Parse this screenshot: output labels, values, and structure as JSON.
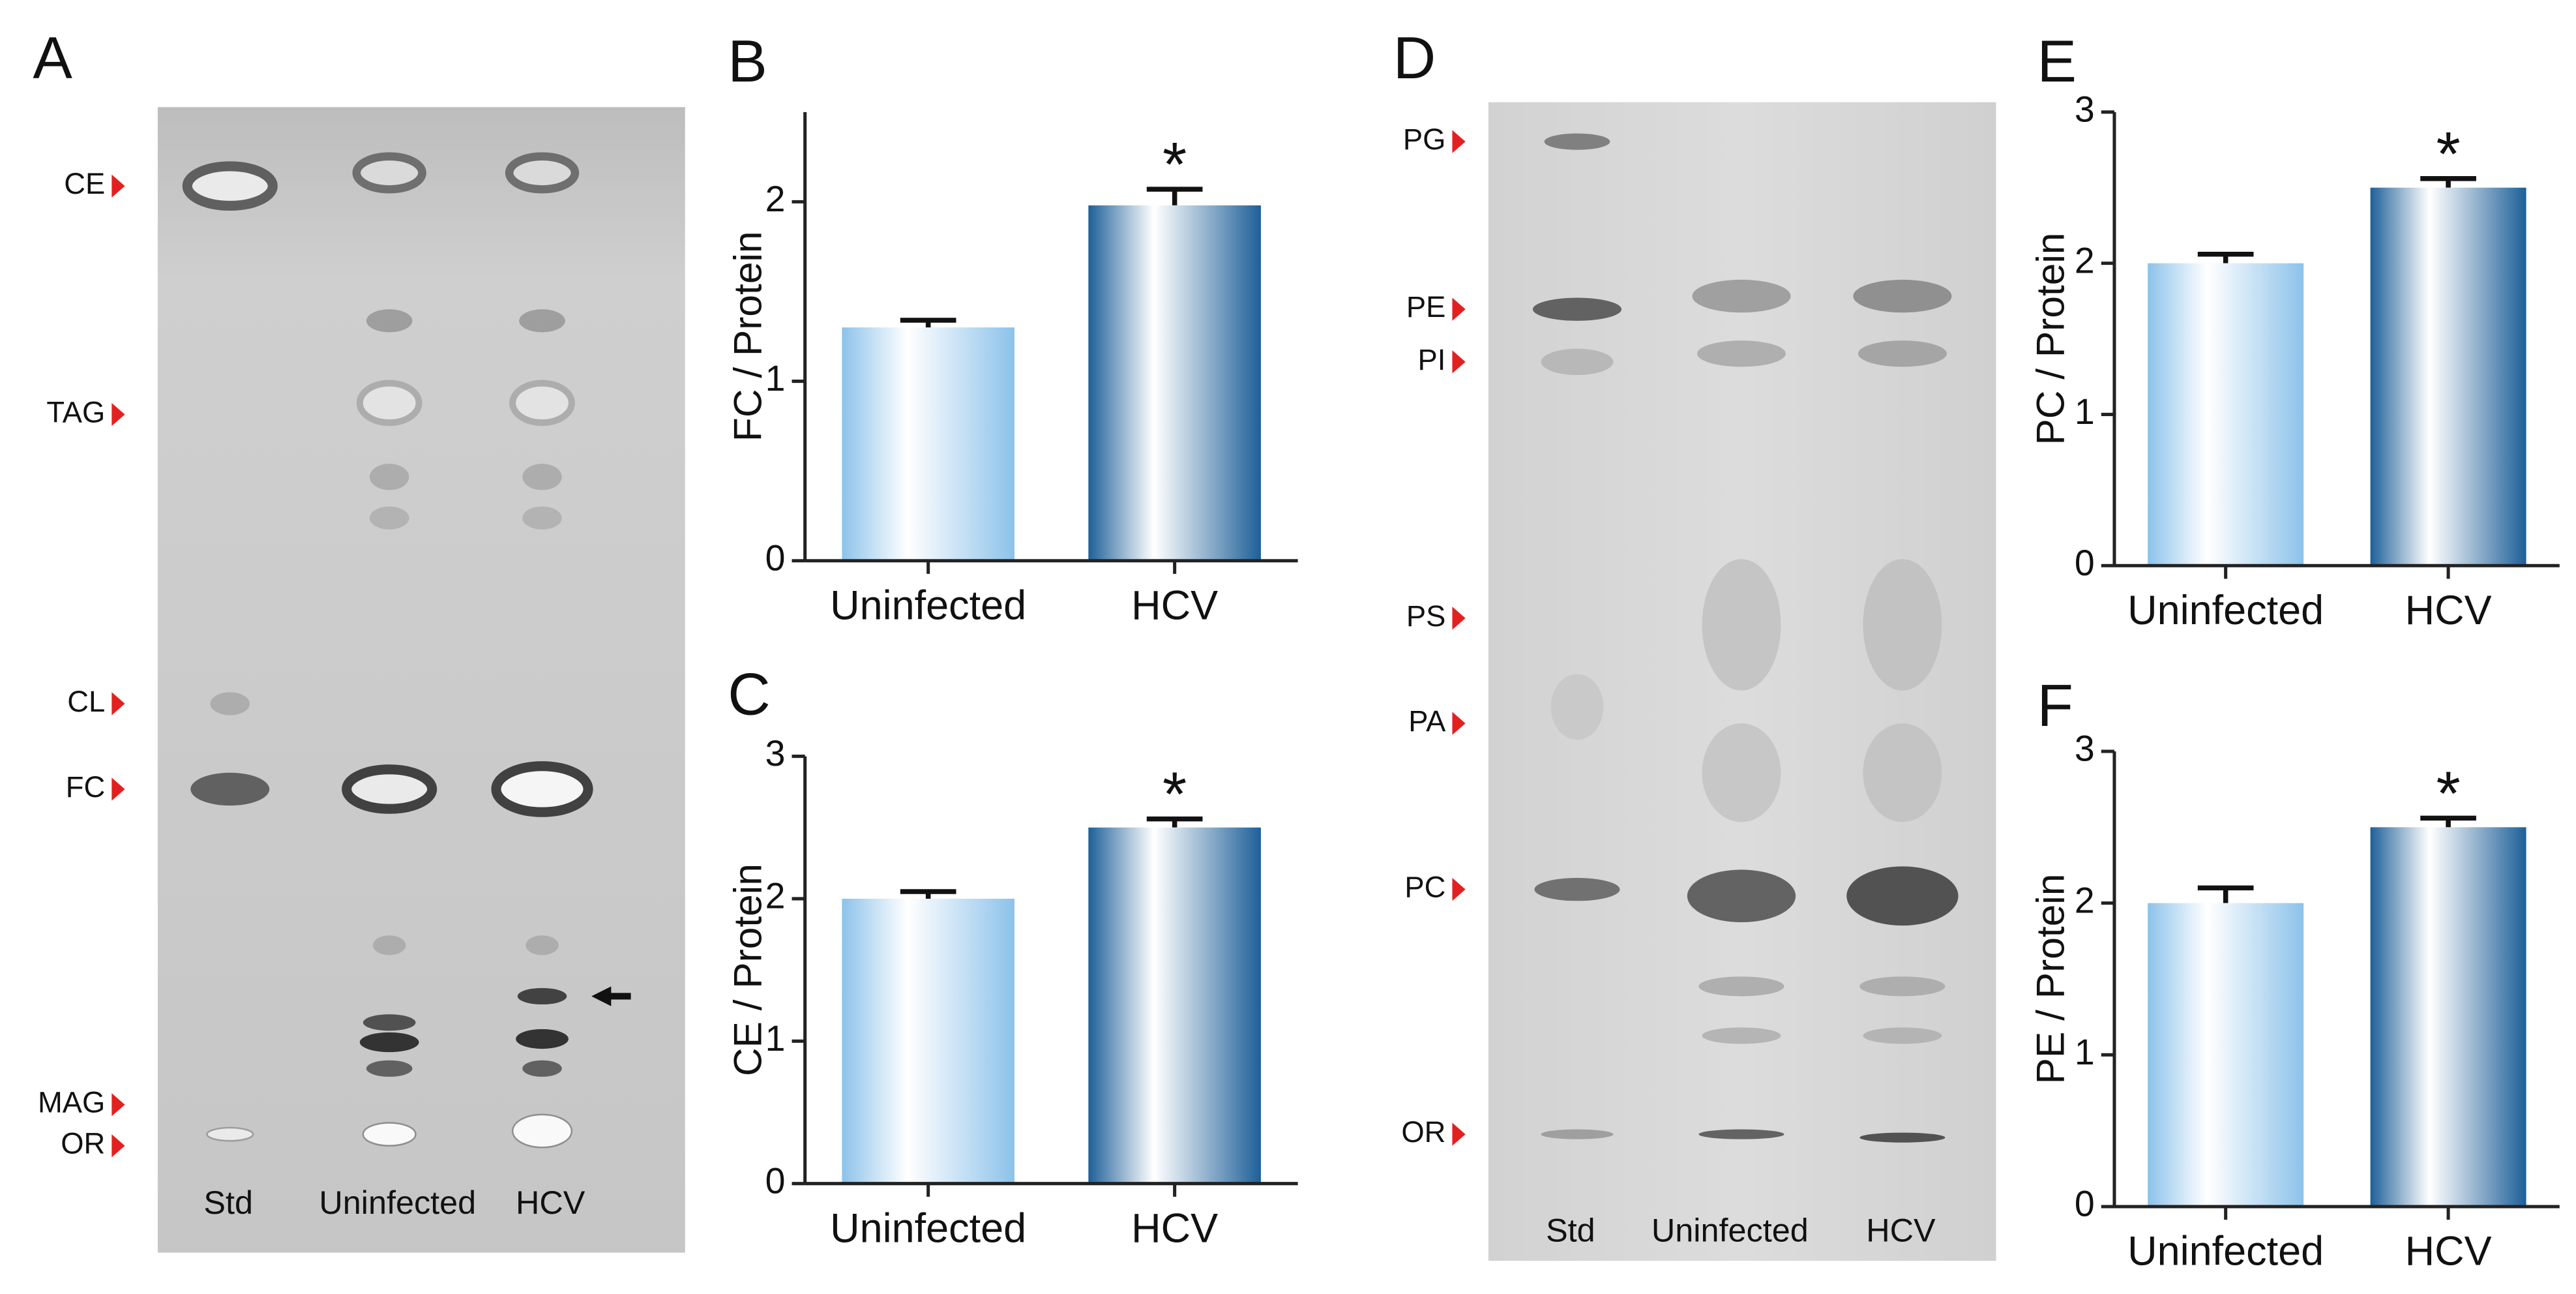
{
  "chart_data": [
    {
      "type": "bar",
      "panel": "B",
      "y_label": "FC / Protein",
      "categories": [
        "Uninfected",
        "HCV"
      ],
      "values": [
        1.3,
        1.98
      ],
      "errors": [
        0.04,
        0.09
      ],
      "colors": [
        "#8cc2ea",
        "#1d5f98"
      ],
      "ylim": [
        0,
        2.5
      ],
      "yticks": [
        0,
        1,
        2
      ],
      "annotations": [
        {
          "text": "*",
          "x": "HCV"
        }
      ]
    },
    {
      "type": "bar",
      "panel": "C",
      "y_label": "CE / Protein",
      "categories": [
        "Uninfected",
        "HCV"
      ],
      "values": [
        2.0,
        2.5
      ],
      "errors": [
        0.05,
        0.06
      ],
      "colors": [
        "#8cc2ea",
        "#1d5f98"
      ],
      "ylim": [
        0,
        3
      ],
      "yticks": [
        0,
        1,
        2,
        3
      ],
      "annotations": [
        {
          "text": "*",
          "x": "HCV"
        }
      ]
    },
    {
      "type": "bar",
      "panel": "E",
      "y_label": "PC / Protein",
      "categories": [
        "Uninfected",
        "HCV"
      ],
      "values": [
        2.0,
        2.5
      ],
      "errors": [
        0.06,
        0.06
      ],
      "colors": [
        "#8cc2ea",
        "#1d5f98"
      ],
      "ylim": [
        0,
        3
      ],
      "yticks": [
        0,
        1,
        2,
        3
      ],
      "annotations": [
        {
          "text": "*",
          "x": "HCV"
        }
      ]
    },
    {
      "type": "bar",
      "panel": "F",
      "y_label": "PE / Protein",
      "categories": [
        "Uninfected",
        "HCV"
      ],
      "values": [
        2.0,
        2.5
      ],
      "errors": [
        0.1,
        0.06
      ],
      "colors": [
        "#8cc2ea",
        "#1d5f98"
      ],
      "ylim": [
        0,
        3
      ],
      "yticks": [
        0,
        1,
        2,
        3
      ],
      "annotations": [
        {
          "text": "*",
          "x": "HCV"
        }
      ]
    }
  ],
  "plates": [
    {
      "panel": "A",
      "bands": [
        "CE",
        "TAG",
        "CL",
        "FC",
        "MAG",
        "OR"
      ],
      "lanes": [
        "Std",
        "Uninfected",
        "HCV"
      ]
    },
    {
      "panel": "D",
      "bands": [
        "PG",
        "PE",
        "PI",
        "PS",
        "PA",
        "PC",
        "OR"
      ],
      "lanes": [
        "Std",
        "Uninfected",
        "HCV"
      ]
    }
  ]
}
